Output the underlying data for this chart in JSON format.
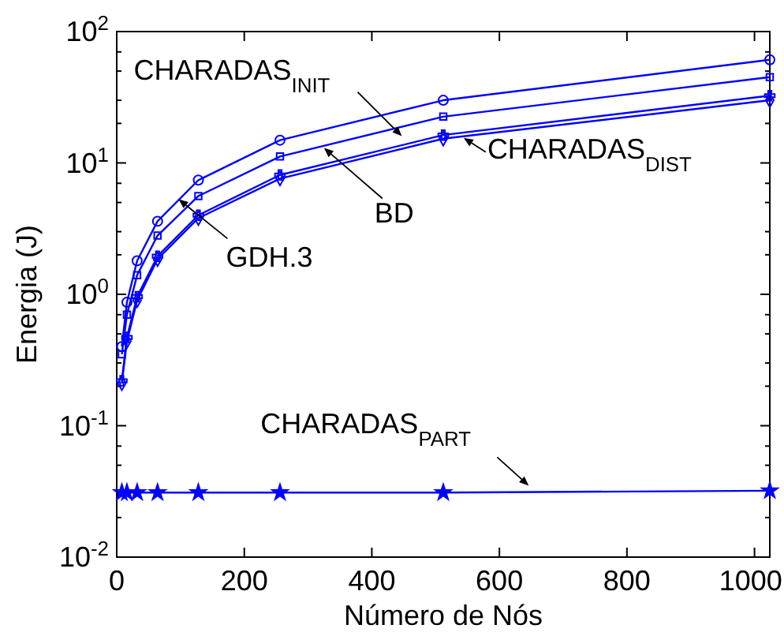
{
  "chart_data": {
    "type": "line",
    "xlabel": "Número de Nós",
    "ylabel": "Energia (J)",
    "log": "y",
    "grid": false,
    "line_style": "solid",
    "x": [
      8,
      16,
      32,
      64,
      128,
      256,
      512,
      1024
    ],
    "xlim": [
      0,
      1024
    ],
    "xticks": [
      0,
      200,
      400,
      600,
      800,
      1000
    ],
    "ylim": [
      0.01,
      100
    ],
    "yticks": [
      {
        "value": 0.01,
        "label": "10$^{-2}$"
      },
      {
        "value": 0.02,
        "label": null
      },
      {
        "value": 0.03,
        "label": null
      },
      {
        "value": 0.05,
        "label": null
      },
      {
        "value": 0.07,
        "label": null
      },
      {
        "value": 0.1,
        "label": "10$^{-1}$"
      },
      {
        "value": 0.2,
        "label": null
      },
      {
        "value": 0.3,
        "label": null
      },
      {
        "value": 0.5,
        "label": null
      },
      {
        "value": 0.7,
        "label": null
      },
      {
        "value": 1,
        "label": "10$^{0}$"
      },
      {
        "value": 2,
        "label": null
      },
      {
        "value": 3,
        "label": null
      },
      {
        "value": 5,
        "label": null
      },
      {
        "value": 7,
        "label": null
      },
      {
        "value": 10,
        "label": "10$^{1}$"
      },
      {
        "value": 20,
        "label": null
      },
      {
        "value": 30,
        "label": null
      },
      {
        "value": 50,
        "label": null
      },
      {
        "value": 70,
        "label": null
      },
      {
        "value": 100,
        "label": "10$^{2}$"
      }
    ],
    "series": [
      {
        "color": "#0000ff",
        "marker": "circle",
        "values": [
          0.4,
          0.87,
          1.8,
          3.6,
          7.4,
          14.9,
          30,
          61
        ]
      },
      {
        "color": "#0000ff",
        "marker": "square",
        "values": [
          0.35,
          0.7,
          1.4,
          2.8,
          5.6,
          11.2,
          22.5,
          45
        ]
      },
      {
        "color": "#0000ff",
        "marker": "diamond",
        "values": [
          0.21,
          0.44,
          0.9,
          1.85,
          3.8,
          7.6,
          15.3,
          30
        ]
      },
      {
        "color": "#0000ff",
        "marker": "cross",
        "values": [
          0.22,
          0.47,
          0.96,
          1.95,
          4.0,
          8.1,
          16.3,
          32.5
        ]
      },
      {
        "color": "#0000ff",
        "marker": "star",
        "values": [
          0.031,
          0.031,
          0.031,
          0.031,
          0.031,
          0.031,
          0.031,
          0.032
        ]
      }
    ],
    "annotations": [
      {
        "text": "CHARADAS$_{INIT}$",
        "x": 447,
        "y": 16
      },
      {
        "text": "BD",
        "x": 325,
        "y": 13
      },
      {
        "text": "GDH.3",
        "x": 97,
        "y": 5.3
      },
      {
        "text": "CHARADAS$_{DIST}$",
        "x": 544,
        "y": 15.5
      },
      {
        "text": "CHARADAS$_{PART}$",
        "x": 646,
        "y": 0.035
      }
    ]
  }
}
